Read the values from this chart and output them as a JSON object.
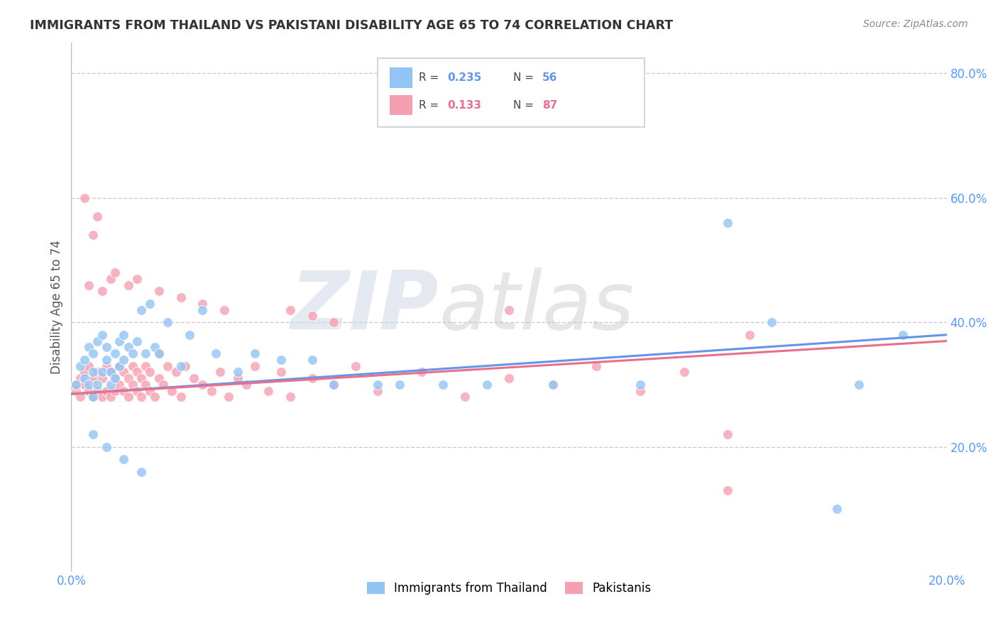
{
  "title": "IMMIGRANTS FROM THAILAND VS PAKISTANI DISABILITY AGE 65 TO 74 CORRELATION CHART",
  "source": "Source: ZipAtlas.com",
  "ylabel": "Disability Age 65 to 74",
  "xlim": [
    0.0,
    0.2
  ],
  "ylim": [
    0.0,
    0.85
  ],
  "xticks": [
    0.0,
    0.05,
    0.1,
    0.15,
    0.2
  ],
  "xtick_labels": [
    "0.0%",
    "",
    "",
    "",
    "20.0%"
  ],
  "ytick_labels": [
    "20.0%",
    "40.0%",
    "60.0%",
    "80.0%"
  ],
  "yticks": [
    0.2,
    0.4,
    0.6,
    0.8
  ],
  "legend_labels": [
    "Immigrants from Thailand",
    "Pakistanis"
  ],
  "R_thailand": 0.235,
  "N_thailand": 56,
  "R_pakistani": 0.133,
  "N_pakistani": 87,
  "color_thailand": "#92c5f5",
  "color_pakistani": "#f5a0b0",
  "color_line_thailand": "#6495ED",
  "color_line_pakistani": "#E8708A",
  "watermark_zip": "ZIP",
  "watermark_atlas": "atlas",
  "background_color": "#ffffff",
  "grid_color": "#cccccc",
  "title_color": "#333333",
  "axis_label_color": "#555555",
  "right_tick_color": "#5599ff",
  "thailand_scatter_x": [
    0.001,
    0.002,
    0.003,
    0.003,
    0.004,
    0.004,
    0.005,
    0.005,
    0.005,
    0.006,
    0.006,
    0.007,
    0.007,
    0.008,
    0.008,
    0.009,
    0.009,
    0.01,
    0.01,
    0.011,
    0.011,
    0.012,
    0.012,
    0.013,
    0.014,
    0.015,
    0.016,
    0.017,
    0.018,
    0.019,
    0.02,
    0.022,
    0.025,
    0.027,
    0.03,
    0.033,
    0.038,
    0.042,
    0.048,
    0.055,
    0.06,
    0.07,
    0.075,
    0.085,
    0.095,
    0.11,
    0.13,
    0.15,
    0.16,
    0.175,
    0.18,
    0.19,
    0.005,
    0.008,
    0.012,
    0.016
  ],
  "thailand_scatter_y": [
    0.3,
    0.33,
    0.31,
    0.34,
    0.3,
    0.36,
    0.32,
    0.28,
    0.35,
    0.3,
    0.37,
    0.32,
    0.38,
    0.34,
    0.36,
    0.3,
    0.32,
    0.31,
    0.35,
    0.33,
    0.37,
    0.34,
    0.38,
    0.36,
    0.35,
    0.37,
    0.42,
    0.35,
    0.43,
    0.36,
    0.35,
    0.4,
    0.33,
    0.38,
    0.42,
    0.35,
    0.32,
    0.35,
    0.34,
    0.34,
    0.3,
    0.3,
    0.3,
    0.3,
    0.3,
    0.3,
    0.3,
    0.56,
    0.4,
    0.1,
    0.3,
    0.38,
    0.22,
    0.2,
    0.18,
    0.16
  ],
  "pakistani_scatter_x": [
    0.001,
    0.001,
    0.002,
    0.002,
    0.003,
    0.003,
    0.004,
    0.004,
    0.005,
    0.005,
    0.005,
    0.006,
    0.006,
    0.007,
    0.007,
    0.008,
    0.008,
    0.009,
    0.009,
    0.01,
    0.01,
    0.011,
    0.011,
    0.012,
    0.012,
    0.013,
    0.013,
    0.014,
    0.014,
    0.015,
    0.015,
    0.016,
    0.016,
    0.017,
    0.017,
    0.018,
    0.018,
    0.019,
    0.02,
    0.02,
    0.021,
    0.022,
    0.023,
    0.024,
    0.025,
    0.026,
    0.028,
    0.03,
    0.032,
    0.034,
    0.036,
    0.038,
    0.04,
    0.042,
    0.045,
    0.048,
    0.05,
    0.055,
    0.06,
    0.065,
    0.07,
    0.08,
    0.09,
    0.1,
    0.11,
    0.12,
    0.13,
    0.14,
    0.15,
    0.155,
    0.003,
    0.006,
    0.009,
    0.013,
    0.004,
    0.007,
    0.01,
    0.015,
    0.02,
    0.025,
    0.03,
    0.035,
    0.05,
    0.055,
    0.06,
    0.1,
    0.15
  ],
  "pakistani_scatter_y": [
    0.29,
    0.3,
    0.28,
    0.31,
    0.3,
    0.32,
    0.29,
    0.33,
    0.28,
    0.31,
    0.54,
    0.29,
    0.32,
    0.28,
    0.31,
    0.29,
    0.33,
    0.28,
    0.32,
    0.29,
    0.31,
    0.3,
    0.33,
    0.29,
    0.32,
    0.28,
    0.31,
    0.3,
    0.33,
    0.29,
    0.32,
    0.28,
    0.31,
    0.3,
    0.33,
    0.29,
    0.32,
    0.28,
    0.31,
    0.35,
    0.3,
    0.33,
    0.29,
    0.32,
    0.28,
    0.33,
    0.31,
    0.3,
    0.29,
    0.32,
    0.28,
    0.31,
    0.3,
    0.33,
    0.29,
    0.32,
    0.28,
    0.31,
    0.3,
    0.33,
    0.29,
    0.32,
    0.28,
    0.31,
    0.3,
    0.33,
    0.29,
    0.32,
    0.13,
    0.38,
    0.6,
    0.57,
    0.47,
    0.46,
    0.46,
    0.45,
    0.48,
    0.47,
    0.45,
    0.44,
    0.43,
    0.42,
    0.42,
    0.41,
    0.4,
    0.42,
    0.22
  ]
}
